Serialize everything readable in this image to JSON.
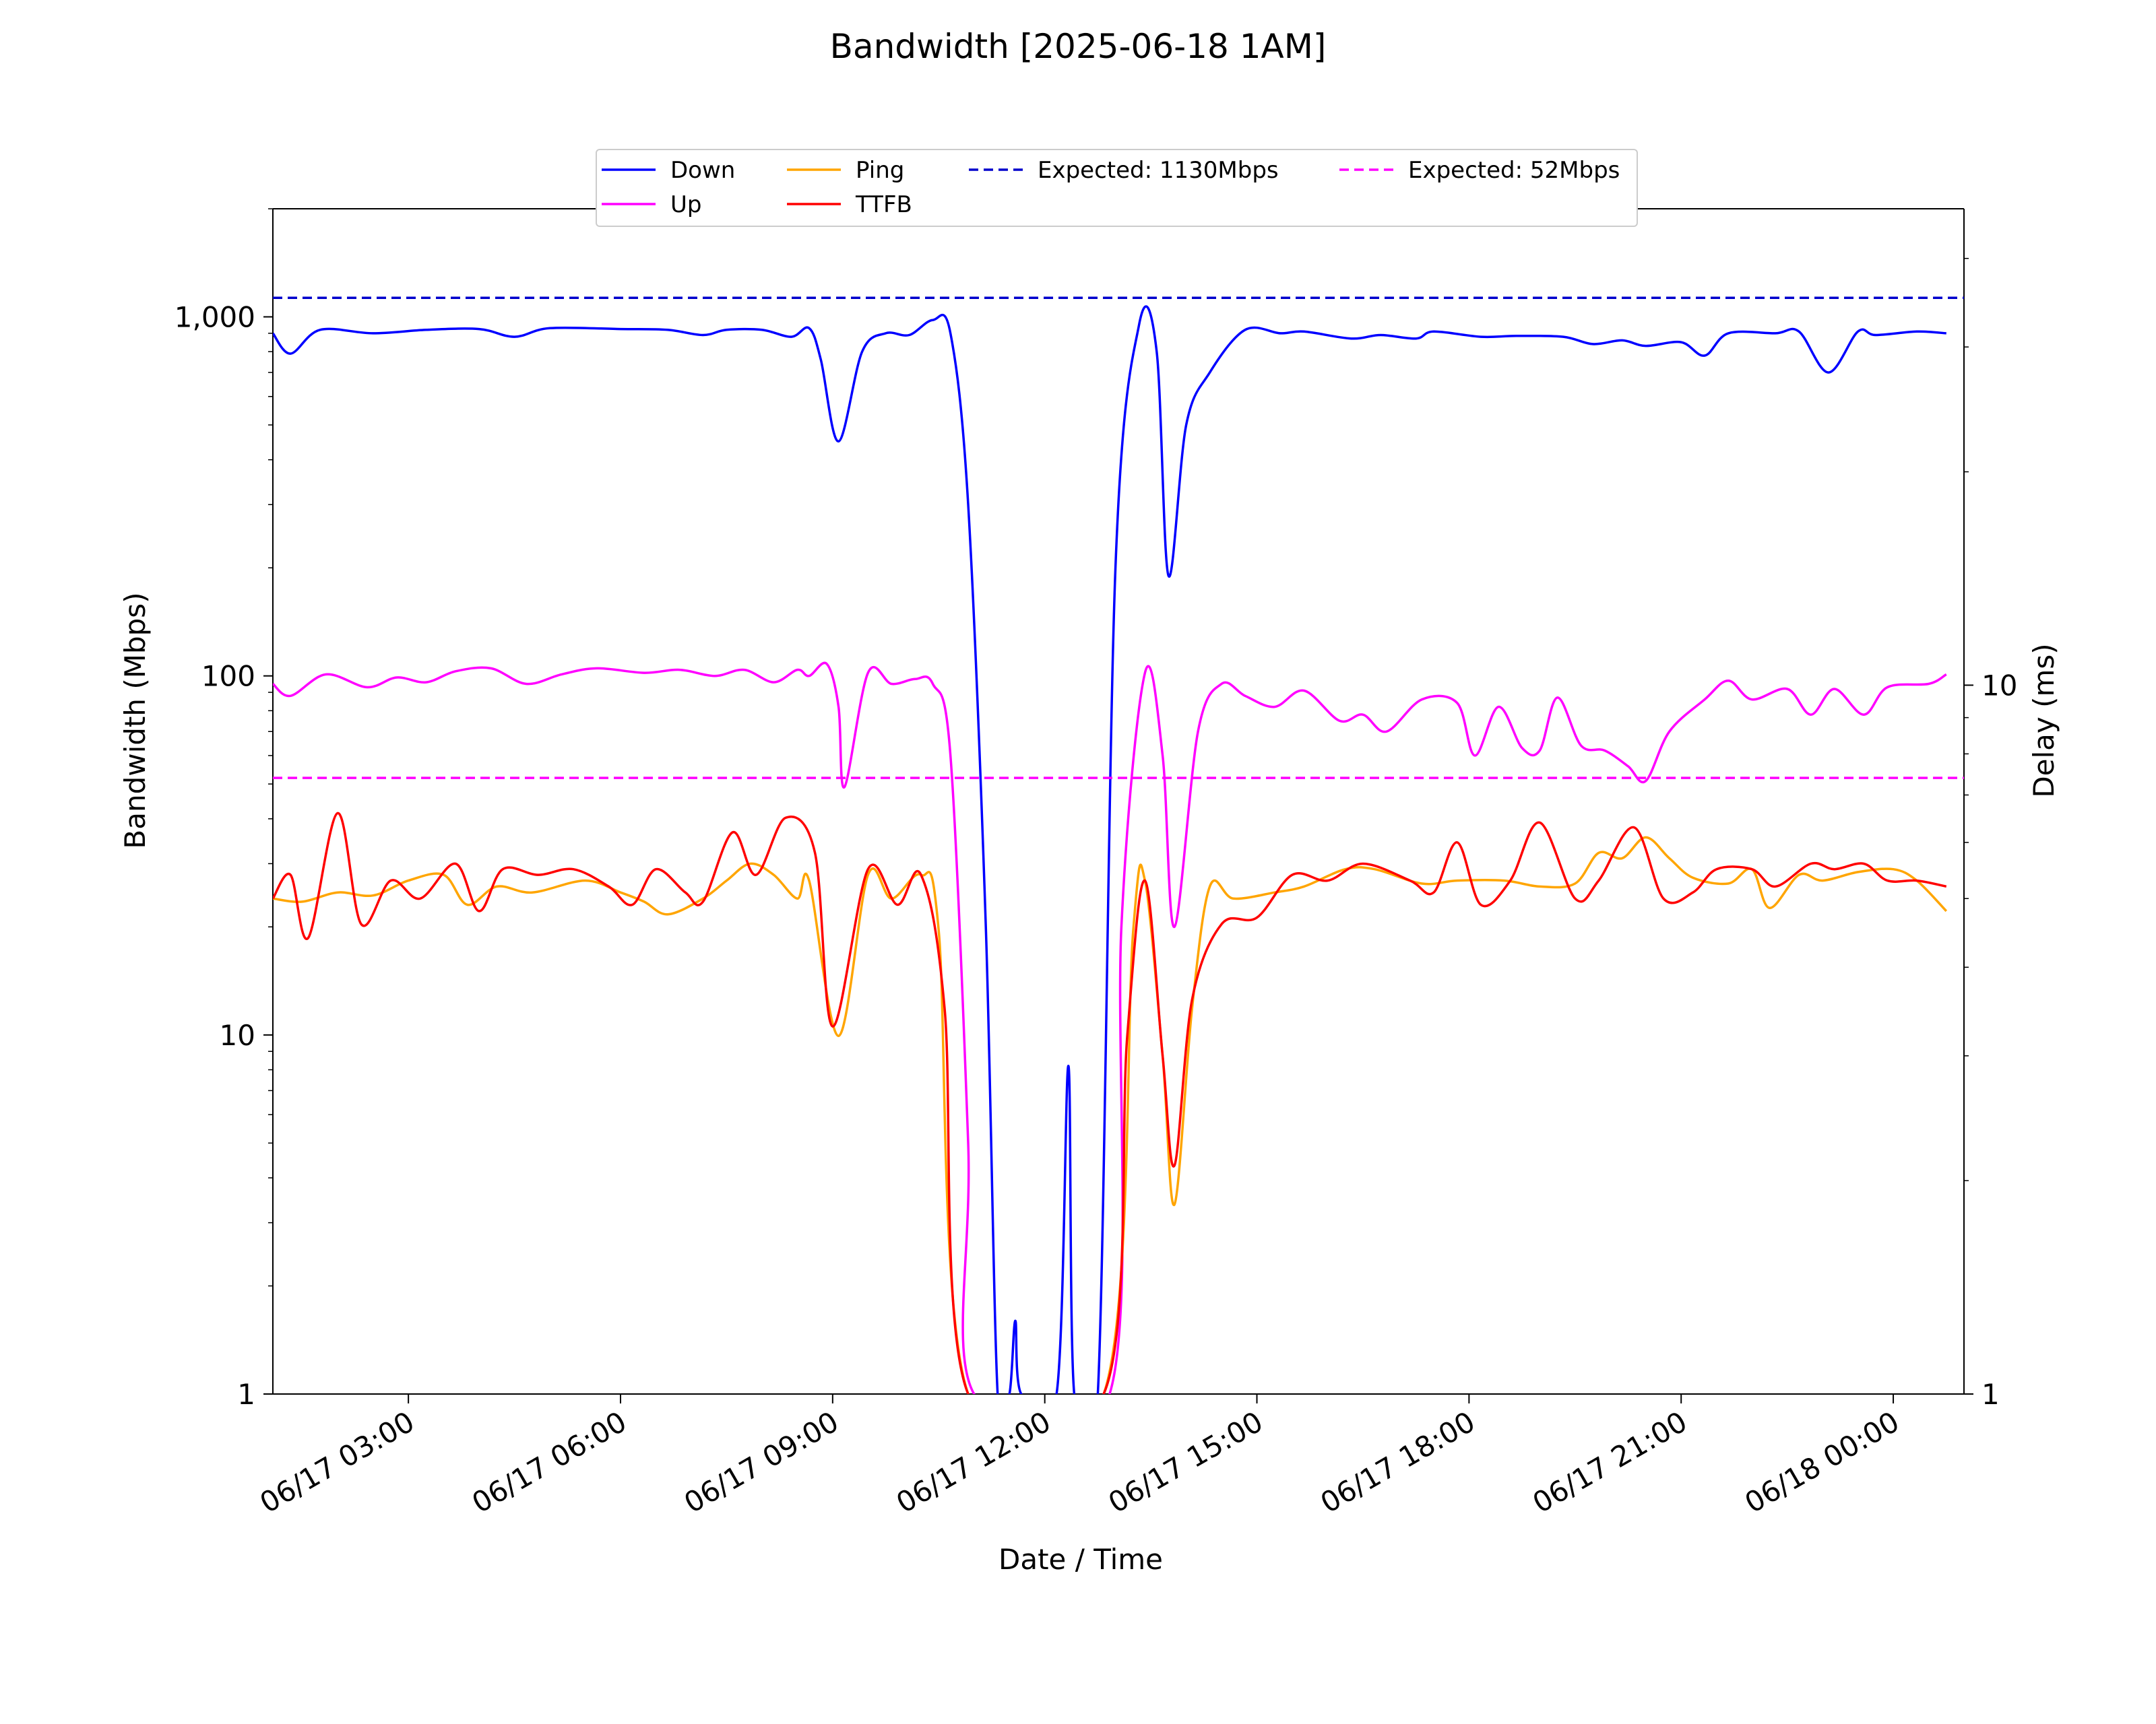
{
  "chart_data": {
    "type": "line",
    "title": "Bandwidth [2025-06-18 1AM]",
    "xlabel": "Date / Time",
    "ylabel": "Bandwidth (Mbps)",
    "ylabel_right": "Delay (ms)",
    "x_range": [
      "2025-06-17 01:05",
      "2025-06-18 01:00"
    ],
    "ylim": [
      1,
      2000
    ],
    "yscale": "log",
    "y_right_lim": [
      1,
      47
    ],
    "y_right_scale": "log",
    "grid": false,
    "legend_position": "top-center",
    "x_ticks": [
      {
        "t": "2025-06-17 03:00",
        "label": "06/17 03:00"
      },
      {
        "t": "2025-06-17 06:00",
        "label": "06/17 06:00"
      },
      {
        "t": "2025-06-17 09:00",
        "label": "06/17 09:00"
      },
      {
        "t": "2025-06-17 12:00",
        "label": "06/17 12:00"
      },
      {
        "t": "2025-06-17 15:00",
        "label": "06/17 15:00"
      },
      {
        "t": "2025-06-17 18:00",
        "label": "06/17 18:00"
      },
      {
        "t": "2025-06-17 21:00",
        "label": "06/17 21:00"
      },
      {
        "t": "2025-06-18 00:00",
        "label": "06/18 00:00"
      }
    ],
    "y_ticks": [
      {
        "v": 1,
        "label": "1"
      },
      {
        "v": 10,
        "label": "10"
      },
      {
        "v": 100,
        "label": "100"
      },
      {
        "v": 1000,
        "label": "1,000"
      }
    ],
    "y_right_ticks": [
      {
        "v": 1,
        "label": "1"
      },
      {
        "v": 10,
        "label": "10"
      }
    ],
    "series": [
      {
        "name": "Down",
        "color": "#0000ff",
        "axis": "left",
        "style": "solid",
        "points": [
          [
            "2025-06-17 01:05",
            900
          ],
          [
            "2025-06-17 01:20",
            790
          ],
          [
            "2025-06-17 01:45",
            920
          ],
          [
            "2025-06-17 02:30",
            900
          ],
          [
            "2025-06-17 03:15",
            920
          ],
          [
            "2025-06-17 04:00",
            925
          ],
          [
            "2025-06-17 04:30",
            880
          ],
          [
            "2025-06-17 05:00",
            930
          ],
          [
            "2025-06-17 06:00",
            925
          ],
          [
            "2025-06-17 06:40",
            920
          ],
          [
            "2025-06-17 07:10",
            890
          ],
          [
            "2025-06-17 07:30",
            920
          ],
          [
            "2025-06-17 08:00",
            920
          ],
          [
            "2025-06-17 08:25",
            880
          ],
          [
            "2025-06-17 08:40",
            930
          ],
          [
            "2025-06-17 08:50",
            760
          ],
          [
            "2025-06-17 09:05",
            450
          ],
          [
            "2025-06-17 09:25",
            800
          ],
          [
            "2025-06-17 09:45",
            900
          ],
          [
            "2025-06-17 10:05",
            890
          ],
          [
            "2025-06-17 10:25",
            980
          ],
          [
            "2025-06-17 10:40",
            900
          ],
          [
            "2025-06-17 10:55",
            300
          ],
          [
            "2025-06-17 11:10",
            20
          ],
          [
            "2025-06-17 11:20",
            1
          ],
          [
            "2025-06-17 11:30",
            1
          ],
          [
            "2025-06-17 11:35",
            1.6
          ],
          [
            "2025-06-17 11:40",
            1
          ],
          [
            "2025-06-17 12:10",
            1
          ],
          [
            "2025-06-17 12:20",
            8.2
          ],
          [
            "2025-06-17 12:25",
            1
          ],
          [
            "2025-06-17 12:45",
            1
          ],
          [
            "2025-06-17 13:00",
            200
          ],
          [
            "2025-06-17 13:20",
            950
          ],
          [
            "2025-06-17 13:35",
            800
          ],
          [
            "2025-06-17 13:45",
            190
          ],
          [
            "2025-06-17 14:00",
            500
          ],
          [
            "2025-06-17 14:20",
            700
          ],
          [
            "2025-06-17 14:50",
            920
          ],
          [
            "2025-06-17 15:20",
            900
          ],
          [
            "2025-06-17 15:40",
            910
          ],
          [
            "2025-06-17 16:20",
            870
          ],
          [
            "2025-06-17 16:45",
            890
          ],
          [
            "2025-06-17 17:15",
            870
          ],
          [
            "2025-06-17 17:30",
            910
          ],
          [
            "2025-06-17 18:10",
            880
          ],
          [
            "2025-06-17 18:40",
            885
          ],
          [
            "2025-06-17 19:20",
            880
          ],
          [
            "2025-06-17 19:45",
            840
          ],
          [
            "2025-06-17 20:10",
            860
          ],
          [
            "2025-06-17 20:30",
            830
          ],
          [
            "2025-06-17 21:00",
            850
          ],
          [
            "2025-06-17 21:20",
            780
          ],
          [
            "2025-06-17 21:40",
            900
          ],
          [
            "2025-06-17 22:20",
            900
          ],
          [
            "2025-06-17 22:40",
            910
          ],
          [
            "2025-06-17 23:05",
            700
          ],
          [
            "2025-06-17 23:30",
            910
          ],
          [
            "2025-06-17 23:45",
            890
          ],
          [
            "2025-06-18 00:20",
            910
          ],
          [
            "2025-06-18 00:45",
            900
          ]
        ]
      },
      {
        "name": "Up",
        "color": "#ff00ff",
        "axis": "left",
        "style": "solid",
        "points": [
          [
            "2025-06-17 01:05",
            95
          ],
          [
            "2025-06-17 01:20",
            88
          ],
          [
            "2025-06-17 01:50",
            101
          ],
          [
            "2025-06-17 02:25",
            93
          ],
          [
            "2025-06-17 02:50",
            99
          ],
          [
            "2025-06-17 03:15",
            96
          ],
          [
            "2025-06-17 03:40",
            103
          ],
          [
            "2025-06-17 04:10",
            105
          ],
          [
            "2025-06-17 04:40",
            95
          ],
          [
            "2025-06-17 05:10",
            101
          ],
          [
            "2025-06-17 05:40",
            105
          ],
          [
            "2025-06-17 06:20",
            102
          ],
          [
            "2025-06-17 06:50",
            104
          ],
          [
            "2025-06-17 07:20",
            100
          ],
          [
            "2025-06-17 07:45",
            104
          ],
          [
            "2025-06-17 08:10",
            96
          ],
          [
            "2025-06-17 08:30",
            104
          ],
          [
            "2025-06-17 08:40",
            100
          ],
          [
            "2025-06-17 08:55",
            108
          ],
          [
            "2025-06-17 09:05",
            82
          ],
          [
            "2025-06-17 09:10",
            49
          ],
          [
            "2025-06-17 09:30",
            102
          ],
          [
            "2025-06-17 09:50",
            95
          ],
          [
            "2025-06-17 10:10",
            98
          ],
          [
            "2025-06-17 10:25",
            95
          ],
          [
            "2025-06-17 10:40",
            60
          ],
          [
            "2025-06-17 10:55",
            5
          ],
          [
            "2025-06-17 11:00",
            1
          ],
          [
            "2025-06-17 12:55",
            1
          ],
          [
            "2025-06-17 13:05",
            20
          ],
          [
            "2025-06-17 13:25",
            102
          ],
          [
            "2025-06-17 13:40",
            60
          ],
          [
            "2025-06-17 13:50",
            20
          ],
          [
            "2025-06-17 14:10",
            70
          ],
          [
            "2025-06-17 14:30",
            95
          ],
          [
            "2025-06-17 14:50",
            88
          ],
          [
            "2025-06-17 15:15",
            82
          ],
          [
            "2025-06-17 15:40",
            91
          ],
          [
            "2025-06-17 16:10",
            75
          ],
          [
            "2025-06-17 16:30",
            78
          ],
          [
            "2025-06-17 16:50",
            70
          ],
          [
            "2025-06-17 17:20",
            86
          ],
          [
            "2025-06-17 17:50",
            84
          ],
          [
            "2025-06-17 18:05",
            60
          ],
          [
            "2025-06-17 18:25",
            82
          ],
          [
            "2025-06-17 18:45",
            63
          ],
          [
            "2025-06-17 19:00",
            62
          ],
          [
            "2025-06-17 19:15",
            87
          ],
          [
            "2025-06-17 19:35",
            64
          ],
          [
            "2025-06-17 19:55",
            62
          ],
          [
            "2025-06-17 20:15",
            56
          ],
          [
            "2025-06-17 20:30",
            51
          ],
          [
            "2025-06-17 20:50",
            70
          ],
          [
            "2025-06-17 21:20",
            86
          ],
          [
            "2025-06-17 21:40",
            97
          ],
          [
            "2025-06-17 22:00",
            86
          ],
          [
            "2025-06-17 22:30",
            92
          ],
          [
            "2025-06-17 22:50",
            78
          ],
          [
            "2025-06-17 23:10",
            92
          ],
          [
            "2025-06-17 23:35",
            78
          ],
          [
            "2025-06-17 23:55",
            93
          ],
          [
            "2025-06-18 00:30",
            95
          ],
          [
            "2025-06-18 00:45",
            101
          ]
        ]
      },
      {
        "name": "Ping",
        "color": "#ffa500",
        "axis": "right",
        "style": "solid",
        "points": [
          [
            "2025-06-17 01:05",
            5.0
          ],
          [
            "2025-06-17 01:30",
            4.95
          ],
          [
            "2025-06-17 02:00",
            5.1
          ],
          [
            "2025-06-17 02:30",
            5.05
          ],
          [
            "2025-06-17 03:00",
            5.3
          ],
          [
            "2025-06-17 03:30",
            5.4
          ],
          [
            "2025-06-17 03:50",
            4.9
          ],
          [
            "2025-06-17 04:15",
            5.2
          ],
          [
            "2025-06-17 04:45",
            5.1
          ],
          [
            "2025-06-17 05:30",
            5.3
          ],
          [
            "2025-06-17 06:00",
            5.1
          ],
          [
            "2025-06-17 06:20",
            4.95
          ],
          [
            "2025-06-17 06:40",
            4.75
          ],
          [
            "2025-06-17 07:10",
            5.0
          ],
          [
            "2025-06-17 07:30",
            5.3
          ],
          [
            "2025-06-17 07:50",
            5.6
          ],
          [
            "2025-06-17 08:10",
            5.4
          ],
          [
            "2025-06-17 08:30",
            5.0
          ],
          [
            "2025-06-17 08:40",
            5.3
          ],
          [
            "2025-06-17 09:05",
            3.2
          ],
          [
            "2025-06-17 09:30",
            5.4
          ],
          [
            "2025-06-17 09:50",
            5.0
          ],
          [
            "2025-06-17 10:15",
            5.4
          ],
          [
            "2025-06-17 10:30",
            4.5
          ],
          [
            "2025-06-17 10:55",
            1.0
          ],
          [
            "2025-06-17 12:50",
            1.0
          ],
          [
            "2025-06-17 13:15",
            4.5
          ],
          [
            "2025-06-17 13:25",
            5.3
          ],
          [
            "2025-06-17 13:40",
            3.0
          ],
          [
            "2025-06-17 13:50",
            1.85
          ],
          [
            "2025-06-17 14:05",
            3.5
          ],
          [
            "2025-06-17 14:20",
            5.2
          ],
          [
            "2025-06-17 14:40",
            5.0
          ],
          [
            "2025-06-17 15:15",
            5.1
          ],
          [
            "2025-06-17 15:40",
            5.2
          ],
          [
            "2025-06-17 16:15",
            5.5
          ],
          [
            "2025-06-17 16:40",
            5.5
          ],
          [
            "2025-06-17 17:20",
            5.25
          ],
          [
            "2025-06-17 17:50",
            5.3
          ],
          [
            "2025-06-17 18:30",
            5.3
          ],
          [
            "2025-06-17 19:00",
            5.2
          ],
          [
            "2025-06-17 19:30",
            5.25
          ],
          [
            "2025-06-17 19:50",
            5.8
          ],
          [
            "2025-06-17 20:10",
            5.7
          ],
          [
            "2025-06-17 20:30",
            6.1
          ],
          [
            "2025-06-17 20:50",
            5.7
          ],
          [
            "2025-06-17 21:10",
            5.35
          ],
          [
            "2025-06-17 21:40",
            5.25
          ],
          [
            "2025-06-17 22:00",
            5.5
          ],
          [
            "2025-06-17 22:15",
            4.85
          ],
          [
            "2025-06-17 22:40",
            5.4
          ],
          [
            "2025-06-17 23:00",
            5.3
          ],
          [
            "2025-06-17 23:30",
            5.45
          ],
          [
            "2025-06-18 00:00",
            5.5
          ],
          [
            "2025-06-18 00:20",
            5.3
          ],
          [
            "2025-06-18 00:45",
            4.8
          ]
        ]
      },
      {
        "name": "TTFB",
        "color": "#ff0000",
        "axis": "right",
        "style": "solid",
        "points": [
          [
            "2025-06-17 01:05",
            5.0
          ],
          [
            "2025-06-17 01:20",
            5.4
          ],
          [
            "2025-06-17 01:35",
            4.4
          ],
          [
            "2025-06-17 02:00",
            6.6
          ],
          [
            "2025-06-17 02:20",
            4.6
          ],
          [
            "2025-06-17 02:45",
            5.3
          ],
          [
            "2025-06-17 03:10",
            5.0
          ],
          [
            "2025-06-17 03:40",
            5.6
          ],
          [
            "2025-06-17 04:00",
            4.8
          ],
          [
            "2025-06-17 04:20",
            5.5
          ],
          [
            "2025-06-17 04:50",
            5.4
          ],
          [
            "2025-06-17 05:20",
            5.5
          ],
          [
            "2025-06-17 05:50",
            5.2
          ],
          [
            "2025-06-17 06:10",
            4.9
          ],
          [
            "2025-06-17 06:30",
            5.5
          ],
          [
            "2025-06-17 06:55",
            5.1
          ],
          [
            "2025-06-17 07:10",
            4.95
          ],
          [
            "2025-06-17 07:35",
            6.2
          ],
          [
            "2025-06-17 07:55",
            5.4
          ],
          [
            "2025-06-17 08:20",
            6.5
          ],
          [
            "2025-06-17 08:45",
            5.8
          ],
          [
            "2025-06-17 09:00",
            3.3
          ],
          [
            "2025-06-17 09:30",
            5.5
          ],
          [
            "2025-06-17 09:55",
            4.9
          ],
          [
            "2025-06-17 10:15",
            5.4
          ],
          [
            "2025-06-17 10:35",
            3.5
          ],
          [
            "2025-06-17 10:55",
            1.0
          ],
          [
            "2025-06-17 12:50",
            1.0
          ],
          [
            "2025-06-17 13:10",
            3.2
          ],
          [
            "2025-06-17 13:25",
            5.3
          ],
          [
            "2025-06-17 13:40",
            3.0
          ],
          [
            "2025-06-17 13:50",
            2.1
          ],
          [
            "2025-06-17 14:05",
            3.6
          ],
          [
            "2025-06-17 14:30",
            4.6
          ],
          [
            "2025-06-17 15:00",
            4.7
          ],
          [
            "2025-06-17 15:30",
            5.4
          ],
          [
            "2025-06-17 16:00",
            5.3
          ],
          [
            "2025-06-17 16:30",
            5.6
          ],
          [
            "2025-06-17 17:10",
            5.3
          ],
          [
            "2025-06-17 17:30",
            5.1
          ],
          [
            "2025-06-17 17:50",
            6.0
          ],
          [
            "2025-06-17 18:10",
            4.9
          ],
          [
            "2025-06-17 18:35",
            5.3
          ],
          [
            "2025-06-17 19:00",
            6.4
          ],
          [
            "2025-06-17 19:30",
            5.0
          ],
          [
            "2025-06-17 19:50",
            5.3
          ],
          [
            "2025-06-17 20:20",
            6.3
          ],
          [
            "2025-06-17 20:45",
            5.0
          ],
          [
            "2025-06-17 21:10",
            5.1
          ],
          [
            "2025-06-17 21:30",
            5.5
          ],
          [
            "2025-06-17 22:00",
            5.5
          ],
          [
            "2025-06-17 22:20",
            5.2
          ],
          [
            "2025-06-17 22:50",
            5.6
          ],
          [
            "2025-06-17 23:10",
            5.5
          ],
          [
            "2025-06-17 23:35",
            5.6
          ],
          [
            "2025-06-17 23:55",
            5.3
          ],
          [
            "2025-06-18 00:20",
            5.3
          ],
          [
            "2025-06-18 00:45",
            5.2
          ]
        ]
      },
      {
        "name": "Expected: 1130Mbps",
        "color": "#0000cc",
        "axis": "left",
        "style": "dashed",
        "constant": 1130
      },
      {
        "name": "Expected: 52Mbps",
        "color": "#ff00ff",
        "axis": "left",
        "style": "dashed",
        "constant": 52
      }
    ]
  }
}
